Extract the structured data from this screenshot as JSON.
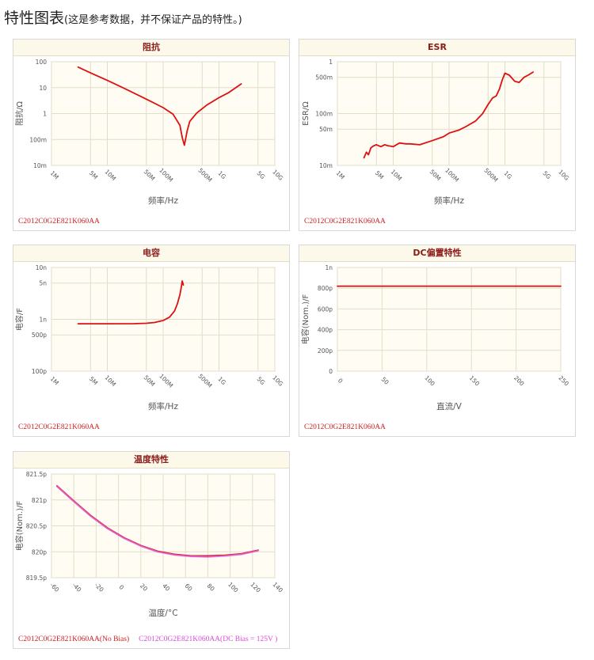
{
  "page": {
    "title": "特性图表",
    "subtitle": "(这是参考数据，并不保证产品的特性。)"
  },
  "panels": [
    {
      "title": "阻抗",
      "footer": [
        "C2012C0G2E821K060AA"
      ]
    },
    {
      "title": "ESR",
      "footer": [
        "C2012C0G2E821K060AA"
      ]
    },
    {
      "title": "电容",
      "footer": [
        "C2012C0G2E821K060AA"
      ]
    },
    {
      "title": "DC偏置特性",
      "footer": [
        "C2012C0G2E821K060AA"
      ]
    },
    {
      "title": "温度特性",
      "footer": [
        "C2012C0G2E821K060AA(No Bias)",
        "C2012C0G2E821K060AA(DC Bias = 125V )"
      ]
    }
  ],
  "colors": {
    "series_main": "#dd1111",
    "series_bias": "#dd66dd",
    "plot_bg": "#fffdf3",
    "grid": "#e3ddc8"
  },
  "chart_data": [
    {
      "type": "line",
      "title": "阻抗",
      "xlabel": "频率/Hz",
      "ylabel": "阻抗/Ω",
      "x_scale": "log",
      "y_scale": "log",
      "xlim": [
        1000000,
        10000000000
      ],
      "ylim": [
        0.01,
        100
      ],
      "x_ticks": [
        {
          "v": 1000000,
          "label": "1M"
        },
        {
          "v": 5000000,
          "label": "5M"
        },
        {
          "v": 10000000,
          "label": "10M"
        },
        {
          "v": 50000000,
          "label": "50M"
        },
        {
          "v": 100000000,
          "label": "100M"
        },
        {
          "v": 500000000,
          "label": "500M"
        },
        {
          "v": 1000000000,
          "label": "1G"
        },
        {
          "v": 5000000000,
          "label": "5G"
        },
        {
          "v": 10000000000,
          "label": "10G"
        }
      ],
      "y_ticks": [
        {
          "v": 0.01,
          "label": "10m"
        },
        {
          "v": 0.1,
          "label": "100m"
        },
        {
          "v": 1,
          "label": "1"
        },
        {
          "v": 10,
          "label": "10"
        },
        {
          "v": 100,
          "label": "100"
        }
      ],
      "series": [
        {
          "name": "C2012C0G2E821K060AA",
          "color": "#dd1111",
          "x": [
            3000000,
            5000000,
            10000000,
            20000000,
            50000000,
            100000000,
            150000000,
            200000000,
            220000000,
            240000000,
            270000000,
            300000000,
            400000000,
            600000000,
            1000000000,
            1500000000,
            2500000000
          ],
          "y": [
            62,
            37,
            19,
            9.4,
            3.6,
            1.7,
            0.95,
            0.35,
            0.12,
            0.06,
            0.22,
            0.5,
            1.05,
            2.1,
            4.1,
            6.5,
            14
          ]
        }
      ]
    },
    {
      "type": "line",
      "title": "ESR",
      "xlabel": "频率/Hz",
      "ylabel": "ESR/Ω",
      "x_scale": "log",
      "y_scale": "log",
      "xlim": [
        1000000,
        10000000000
      ],
      "ylim": [
        0.01,
        1
      ],
      "x_ticks": [
        {
          "v": 1000000,
          "label": "1M"
        },
        {
          "v": 5000000,
          "label": "5M"
        },
        {
          "v": 10000000,
          "label": "10M"
        },
        {
          "v": 50000000,
          "label": "50M"
        },
        {
          "v": 100000000,
          "label": "100M"
        },
        {
          "v": 500000000,
          "label": "500M"
        },
        {
          "v": 1000000000,
          "label": "1G"
        },
        {
          "v": 5000000000,
          "label": "5G"
        },
        {
          "v": 10000000000,
          "label": "10G"
        }
      ],
      "y_ticks": [
        {
          "v": 0.01,
          "label": "10m"
        },
        {
          "v": 0.05,
          "label": "50m"
        },
        {
          "v": 0.1,
          "label": "100m"
        },
        {
          "v": 0.5,
          "label": "500m"
        },
        {
          "v": 1,
          "label": "1"
        }
      ],
      "series": [
        {
          "name": "C2012C0G2E821K060AA",
          "color": "#dd1111",
          "x": [
            3000000,
            3300000,
            3600000,
            4000000,
            4500000,
            5000000,
            6000000,
            7000000,
            8000000,
            10000000,
            13000000,
            17000000,
            20000000,
            30000000,
            50000000,
            80000000,
            100000000,
            150000000,
            200000000,
            300000000,
            400000000,
            500000000,
            600000000,
            700000000,
            800000000,
            900000000,
            1000000000,
            1200000000,
            1500000000,
            1800000000,
            2200000000,
            2600000000,
            3200000000
          ],
          "y": [
            0.014,
            0.018,
            0.016,
            0.022,
            0.024,
            0.025,
            0.023,
            0.025,
            0.024,
            0.023,
            0.027,
            0.026,
            0.026,
            0.025,
            0.03,
            0.036,
            0.042,
            0.048,
            0.056,
            0.072,
            0.1,
            0.15,
            0.2,
            0.22,
            0.3,
            0.45,
            0.6,
            0.55,
            0.42,
            0.4,
            0.5,
            0.55,
            0.63
          ]
        }
      ]
    },
    {
      "type": "line",
      "title": "电容",
      "xlabel": "频率/Hz",
      "ylabel": "电容/F",
      "x_scale": "log",
      "y_scale": "log",
      "xlim": [
        1000000,
        10000000000
      ],
      "ylim": [
        1e-10,
        1e-08
      ],
      "x_ticks": [
        {
          "v": 1000000,
          "label": "1M"
        },
        {
          "v": 5000000,
          "label": "5M"
        },
        {
          "v": 10000000,
          "label": "10M"
        },
        {
          "v": 50000000,
          "label": "50M"
        },
        {
          "v": 100000000,
          "label": "100M"
        },
        {
          "v": 500000000,
          "label": "500M"
        },
        {
          "v": 1000000000,
          "label": "1G"
        },
        {
          "v": 5000000000,
          "label": "5G"
        },
        {
          "v": 10000000000,
          "label": "10G"
        }
      ],
      "y_ticks": [
        {
          "v": 1e-10,
          "label": "100p"
        },
        {
          "v": 5e-10,
          "label": "500p"
        },
        {
          "v": 1e-09,
          "label": "1n"
        },
        {
          "v": 5e-09,
          "label": "5n"
        },
        {
          "v": 1e-08,
          "label": "10n"
        }
      ],
      "series": [
        {
          "name": "C2012C0G2E821K060AA",
          "color": "#dd1111",
          "x": [
            3000000,
            10000000,
            30000000,
            50000000,
            70000000,
            100000000,
            130000000,
            160000000,
            180000000,
            200000000,
            210000000,
            220000000,
            230000000
          ],
          "y": [
            8.2e-10,
            8.2e-10,
            8.25e-10,
            8.4e-10,
            8.7e-10,
            9.5e-10,
            1.1e-09,
            1.45e-09,
            2e-09,
            3e-09,
            4e-09,
            5.5e-09,
            4.6e-09
          ]
        }
      ]
    },
    {
      "type": "line",
      "title": "DC偏置特性",
      "xlabel": "直流/V",
      "ylabel": "电容(Nom.)/F",
      "x_scale": "linear",
      "y_scale": "linear",
      "xlim": [
        0,
        250
      ],
      "ylim": [
        0,
        1e-09
      ],
      "x_ticks": [
        {
          "v": 0,
          "label": "0"
        },
        {
          "v": 50,
          "label": "50"
        },
        {
          "v": 100,
          "label": "100"
        },
        {
          "v": 150,
          "label": "150"
        },
        {
          "v": 200,
          "label": "200"
        },
        {
          "v": 250,
          "label": "250"
        }
      ],
      "y_ticks": [
        {
          "v": 0,
          "label": "0"
        },
        {
          "v": 2e-10,
          "label": "200p"
        },
        {
          "v": 4e-10,
          "label": "400p"
        },
        {
          "v": 6e-10,
          "label": "600p"
        },
        {
          "v": 8e-10,
          "label": "800p"
        },
        {
          "v": 1e-09,
          "label": "1n"
        }
      ],
      "series": [
        {
          "name": "C2012C0G2E821K060AA",
          "color": "#dd1111",
          "x": [
            0,
            50,
            100,
            150,
            200,
            250
          ],
          "y": [
            8.2e-10,
            8.2e-10,
            8.2e-10,
            8.2e-10,
            8.2e-10,
            8.2e-10
          ]
        }
      ]
    },
    {
      "type": "line",
      "title": "温度特性",
      "xlabel": "温度/°C",
      "ylabel": "电容(Nom.)/F",
      "x_scale": "linear",
      "y_scale": "linear",
      "xlim": [
        -60,
        140
      ],
      "ylim": [
        819.5,
        821.5
      ],
      "x_ticks": [
        {
          "v": -60,
          "label": "-60"
        },
        {
          "v": -40,
          "label": "-40"
        },
        {
          "v": -20,
          "label": "-20"
        },
        {
          "v": 0,
          "label": "0"
        },
        {
          "v": 20,
          "label": "20"
        },
        {
          "v": 40,
          "label": "40"
        },
        {
          "v": 60,
          "label": "60"
        },
        {
          "v": 80,
          "label": "80"
        },
        {
          "v": 100,
          "label": "100"
        },
        {
          "v": 120,
          "label": "120"
        },
        {
          "v": 140,
          "label": "140"
        }
      ],
      "y_ticks": [
        {
          "v": 819.5,
          "label": "819.5p"
        },
        {
          "v": 820,
          "label": "820p"
        },
        {
          "v": 820.5,
          "label": "820.5p"
        },
        {
          "v": 821,
          "label": "821p"
        },
        {
          "v": 821.5,
          "label": "821.5p"
        }
      ],
      "series": [
        {
          "name": "C2012C0G2E821K060AA(No Bias)",
          "color": "#dd1111",
          "x": [
            -55,
            -40,
            -25,
            -10,
            5,
            20,
            35,
            50,
            65,
            80,
            95,
            110,
            125
          ],
          "y": [
            821.27,
            820.98,
            820.7,
            820.46,
            820.27,
            820.12,
            820.01,
            819.95,
            819.92,
            819.92,
            819.93,
            819.96,
            820.03
          ]
        },
        {
          "name": "C2012C0G2E821K060AA(DC Bias = 125V )",
          "color": "#dd66dd",
          "x": [
            -55,
            -40,
            -25,
            -10,
            5,
            20,
            35,
            50,
            65,
            80,
            95,
            110,
            125
          ],
          "y": [
            821.26,
            820.97,
            820.69,
            820.45,
            820.26,
            820.11,
            820.0,
            819.94,
            819.91,
            819.9,
            819.92,
            819.95,
            820.02
          ]
        }
      ]
    }
  ]
}
